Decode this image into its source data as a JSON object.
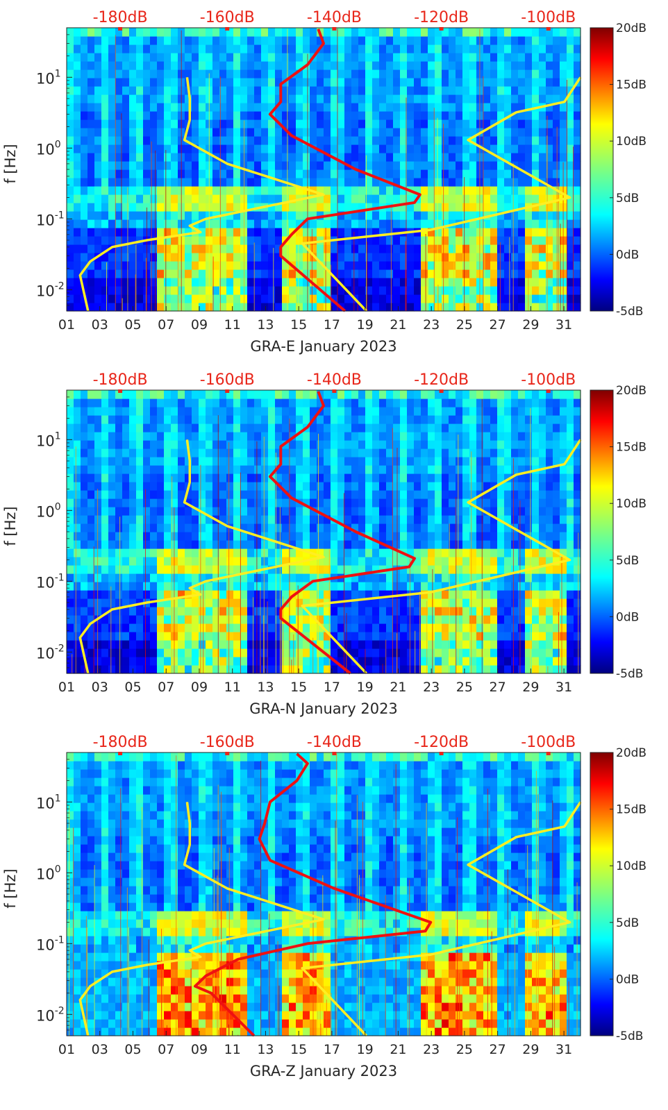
{
  "chart_data": [
    {
      "type": "heatmap",
      "xlabel": "GRA-E January 2023",
      "ylabel": "f [Hz]",
      "x_ticks": [
        "01",
        "03",
        "05",
        "07",
        "09",
        "11",
        "13",
        "15",
        "17",
        "19",
        "21",
        "23",
        "25",
        "27",
        "29",
        "31"
      ],
      "y_ticks": [
        {
          "exp": "-2",
          "value": 0.01
        },
        {
          "exp": "-1",
          "value": 0.1
        },
        {
          "exp": "0",
          "value": 1
        },
        {
          "exp": "1",
          "value": 10
        }
      ],
      "y_scale": "log",
      "ylim": [
        0.005,
        50
      ],
      "xlim": [
        1,
        32
      ],
      "top_axis_ticks": [
        "-180dB",
        "-160dB",
        "-140dB",
        "-120dB",
        "-100dB"
      ],
      "top_axis_range_db": [
        -190,
        -94
      ],
      "colorbar": {
        "ticks": [
          "20dB",
          "15dB",
          "10dB",
          "5dB",
          "0dB",
          "-5dB"
        ],
        "range": [
          -5,
          20
        ],
        "colormap": "jet"
      },
      "overlays": [
        {
          "color": "#ffee22",
          "style": "noise-model-low",
          "points": [
            [
              -186,
              0.005
            ],
            [
              -187.5,
              0.016
            ],
            [
              -185.6,
              0.025
            ],
            [
              -181.5,
              0.04
            ],
            [
              -175,
              0.05
            ],
            [
              -168,
              0.06
            ],
            [
              -165,
              0.065
            ],
            [
              -167,
              0.08
            ],
            [
              -164,
              0.1
            ],
            [
              -142,
              0.22
            ],
            [
              -160,
              0.6
            ],
            [
              -168,
              1.3
            ],
            [
              -167,
              2.5
            ],
            [
              -167,
              5
            ],
            [
              -167.5,
              10
            ]
          ]
        },
        {
          "color": "#ffee22",
          "style": "noise-model-high",
          "points": [
            [
              -134,
              0.005
            ],
            [
              -146,
              0.045
            ],
            [
              -122,
              0.07
            ],
            [
              -96,
              0.2
            ],
            [
              -115,
              1.3
            ],
            [
              -106,
              3.2
            ],
            [
              -97,
              4.5
            ],
            [
              -94,
              10
            ]
          ]
        },
        {
          "color": "#ee1111",
          "style": "station-psd",
          "points": [
            [
              -138,
              0.005
            ],
            [
              -150,
              0.03
            ],
            [
              -150,
              0.04
            ],
            [
              -148,
              0.06
            ],
            [
              -145,
              0.1
            ],
            [
              -125,
              0.17
            ],
            [
              -124,
              0.22
            ],
            [
              -136,
              0.5
            ],
            [
              -148,
              1.5
            ],
            [
              -152,
              3
            ],
            [
              -150,
              4.5
            ],
            [
              -150,
              8
            ],
            [
              -145,
              15
            ],
            [
              -142,
              30
            ],
            [
              -143,
              48
            ]
          ]
        }
      ]
    },
    {
      "type": "heatmap",
      "xlabel": "GRA-N January 2023",
      "ylabel": "f [Hz]",
      "x_ticks": [
        "01",
        "03",
        "05",
        "07",
        "09",
        "11",
        "13",
        "15",
        "17",
        "19",
        "21",
        "23",
        "25",
        "27",
        "29",
        "31"
      ],
      "y_ticks": [
        {
          "exp": "-2",
          "value": 0.01
        },
        {
          "exp": "-1",
          "value": 0.1
        },
        {
          "exp": "0",
          "value": 1
        },
        {
          "exp": "1",
          "value": 10
        }
      ],
      "y_scale": "log",
      "ylim": [
        0.005,
        50
      ],
      "xlim": [
        1,
        32
      ],
      "top_axis_ticks": [
        "-180dB",
        "-160dB",
        "-140dB",
        "-120dB",
        "-100dB"
      ],
      "top_axis_range_db": [
        -190,
        -94
      ],
      "colorbar": {
        "ticks": [
          "20dB",
          "15dB",
          "10dB",
          "5dB",
          "0dB",
          "-5dB"
        ],
        "range": [
          -5,
          20
        ],
        "colormap": "jet"
      },
      "overlays": [
        {
          "color": "#ffee22",
          "style": "noise-model-low",
          "points": [
            [
              -186,
              0.005
            ],
            [
              -187.5,
              0.016
            ],
            [
              -185.6,
              0.025
            ],
            [
              -181.5,
              0.04
            ],
            [
              -175,
              0.05
            ],
            [
              -168,
              0.06
            ],
            [
              -165,
              0.065
            ],
            [
              -167,
              0.08
            ],
            [
              -164,
              0.1
            ],
            [
              -142,
              0.22
            ],
            [
              -160,
              0.6
            ],
            [
              -168,
              1.3
            ],
            [
              -167,
              2.5
            ],
            [
              -167,
              5
            ],
            [
              -167.5,
              10
            ]
          ]
        },
        {
          "color": "#ffee22",
          "style": "noise-model-high",
          "points": [
            [
              -134,
              0.005
            ],
            [
              -146,
              0.045
            ],
            [
              -122,
              0.07
            ],
            [
              -96,
              0.2
            ],
            [
              -115,
              1.3
            ],
            [
              -106,
              3.2
            ],
            [
              -97,
              4.5
            ],
            [
              -94,
              10
            ]
          ]
        },
        {
          "color": "#ee1111",
          "style": "station-psd",
          "points": [
            [
              -137,
              0.005
            ],
            [
              -150,
              0.03
            ],
            [
              -150,
              0.04
            ],
            [
              -148,
              0.06
            ],
            [
              -144,
              0.1
            ],
            [
              -126,
              0.16
            ],
            [
              -125,
              0.21
            ],
            [
              -136,
              0.5
            ],
            [
              -148,
              1.5
            ],
            [
              -152,
              3
            ],
            [
              -150,
              4.5
            ],
            [
              -150,
              8
            ],
            [
              -145,
              15
            ],
            [
              -142,
              30
            ],
            [
              -143,
              48
            ]
          ]
        }
      ]
    },
    {
      "type": "heatmap",
      "xlabel": "GRA-Z January 2023",
      "ylabel": "f [Hz]",
      "x_ticks": [
        "01",
        "03",
        "05",
        "07",
        "09",
        "11",
        "13",
        "15",
        "17",
        "19",
        "21",
        "23",
        "25",
        "27",
        "29",
        "31"
      ],
      "y_ticks": [
        {
          "exp": "-2",
          "value": 0.01
        },
        {
          "exp": "-1",
          "value": 0.1
        },
        {
          "exp": "0",
          "value": 1
        },
        {
          "exp": "1",
          "value": 10
        }
      ],
      "y_scale": "log",
      "ylim": [
        0.005,
        50
      ],
      "xlim": [
        1,
        32
      ],
      "top_axis_ticks": [
        "-180dB",
        "-160dB",
        "-140dB",
        "-120dB",
        "-100dB"
      ],
      "top_axis_range_db": [
        -190,
        -94
      ],
      "colorbar": {
        "ticks": [
          "20dB",
          "15dB",
          "10dB",
          "5dB",
          "0dB",
          "-5dB"
        ],
        "range": [
          -5,
          20
        ],
        "colormap": "jet"
      },
      "overlays": [
        {
          "color": "#ffee22",
          "style": "noise-model-low",
          "points": [
            [
              -186,
              0.005
            ],
            [
              -187.5,
              0.016
            ],
            [
              -185.6,
              0.025
            ],
            [
              -181.5,
              0.04
            ],
            [
              -175,
              0.05
            ],
            [
              -168,
              0.06
            ],
            [
              -165,
              0.065
            ],
            [
              -167,
              0.08
            ],
            [
              -164,
              0.1
            ],
            [
              -142,
              0.22
            ],
            [
              -160,
              0.6
            ],
            [
              -168,
              1.3
            ],
            [
              -167,
              2.5
            ],
            [
              -167,
              5
            ],
            [
              -167.5,
              10
            ]
          ]
        },
        {
          "color": "#ffee22",
          "style": "noise-model-high",
          "points": [
            [
              -134,
              0.005
            ],
            [
              -146,
              0.045
            ],
            [
              -122,
              0.07
            ],
            [
              -96,
              0.2
            ],
            [
              -115,
              1.3
            ],
            [
              -106,
              3.2
            ],
            [
              -97,
              4.5
            ],
            [
              -94,
              10
            ]
          ]
        },
        {
          "color": "#ee1111",
          "style": "station-psd",
          "points": [
            [
              -155,
              0.005
            ],
            [
              -163,
              0.02
            ],
            [
              -166,
              0.025
            ],
            [
              -164,
              0.035
            ],
            [
              -158,
              0.06
            ],
            [
              -145,
              0.1
            ],
            [
              -123,
              0.15
            ],
            [
              -122,
              0.2
            ],
            [
              -140,
              0.6
            ],
            [
              -152,
              1.5
            ],
            [
              -154,
              3
            ],
            [
              -153,
              5
            ],
            [
              -152,
              10
            ],
            [
              -147,
              20
            ],
            [
              -145,
              35
            ],
            [
              -147,
              48
            ]
          ]
        }
      ]
    }
  ]
}
